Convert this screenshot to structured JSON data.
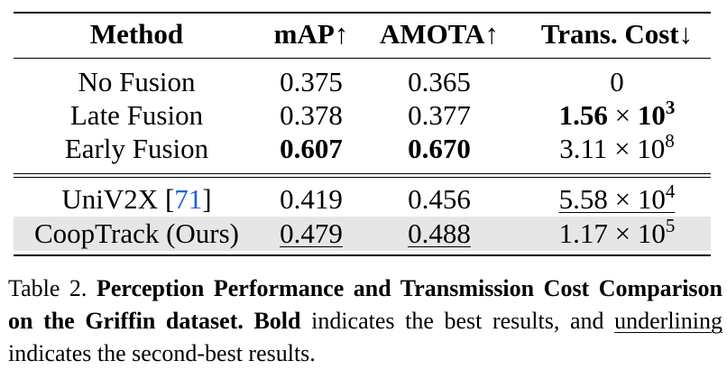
{
  "table": {
    "headers": [
      "Method",
      "mAP↑",
      "AMOTA↑",
      "Trans. Cost↓"
    ],
    "rows": [
      {
        "method": "No Fusion",
        "map": "0.375",
        "amota": "0.365",
        "cost": "0"
      },
      {
        "method": "Late Fusion",
        "map": "0.378",
        "amota": "0.377",
        "cost_mantissa": "1.56",
        "cost_times": "×",
        "cost_base": "10",
        "cost_exp": "3"
      },
      {
        "method": "Early Fusion",
        "map": "0.607",
        "amota": "0.670",
        "cost_mantissa": "3.11",
        "cost_times": "×",
        "cost_base": "10",
        "cost_exp": "8"
      },
      {
        "method": "UniV2X",
        "cite_open": "[",
        "cite_num": "71",
        "cite_close": "]",
        "map": "0.419",
        "amota": "0.456",
        "cost_mantissa": "5.58",
        "cost_times": "×",
        "cost_base": "10",
        "cost_exp": "4"
      },
      {
        "method": "CoopTrack (Ours)",
        "map": "0.479",
        "amota": "0.488",
        "cost_mantissa": "1.17",
        "cost_times": "×",
        "cost_base": "10",
        "cost_exp": "5"
      }
    ],
    "highlight_color": "#e6e6e6",
    "citation_color": "#1f5fd6"
  },
  "caption": {
    "label": "Table 2.",
    "title": "Perception Performance and Transmission Cost Comparison on the Griffin dataset.",
    "bold_word": "Bold",
    "text_1": "indicates the best results, and",
    "underline_word": "underlining",
    "text_2": "indicates the second-best results."
  }
}
